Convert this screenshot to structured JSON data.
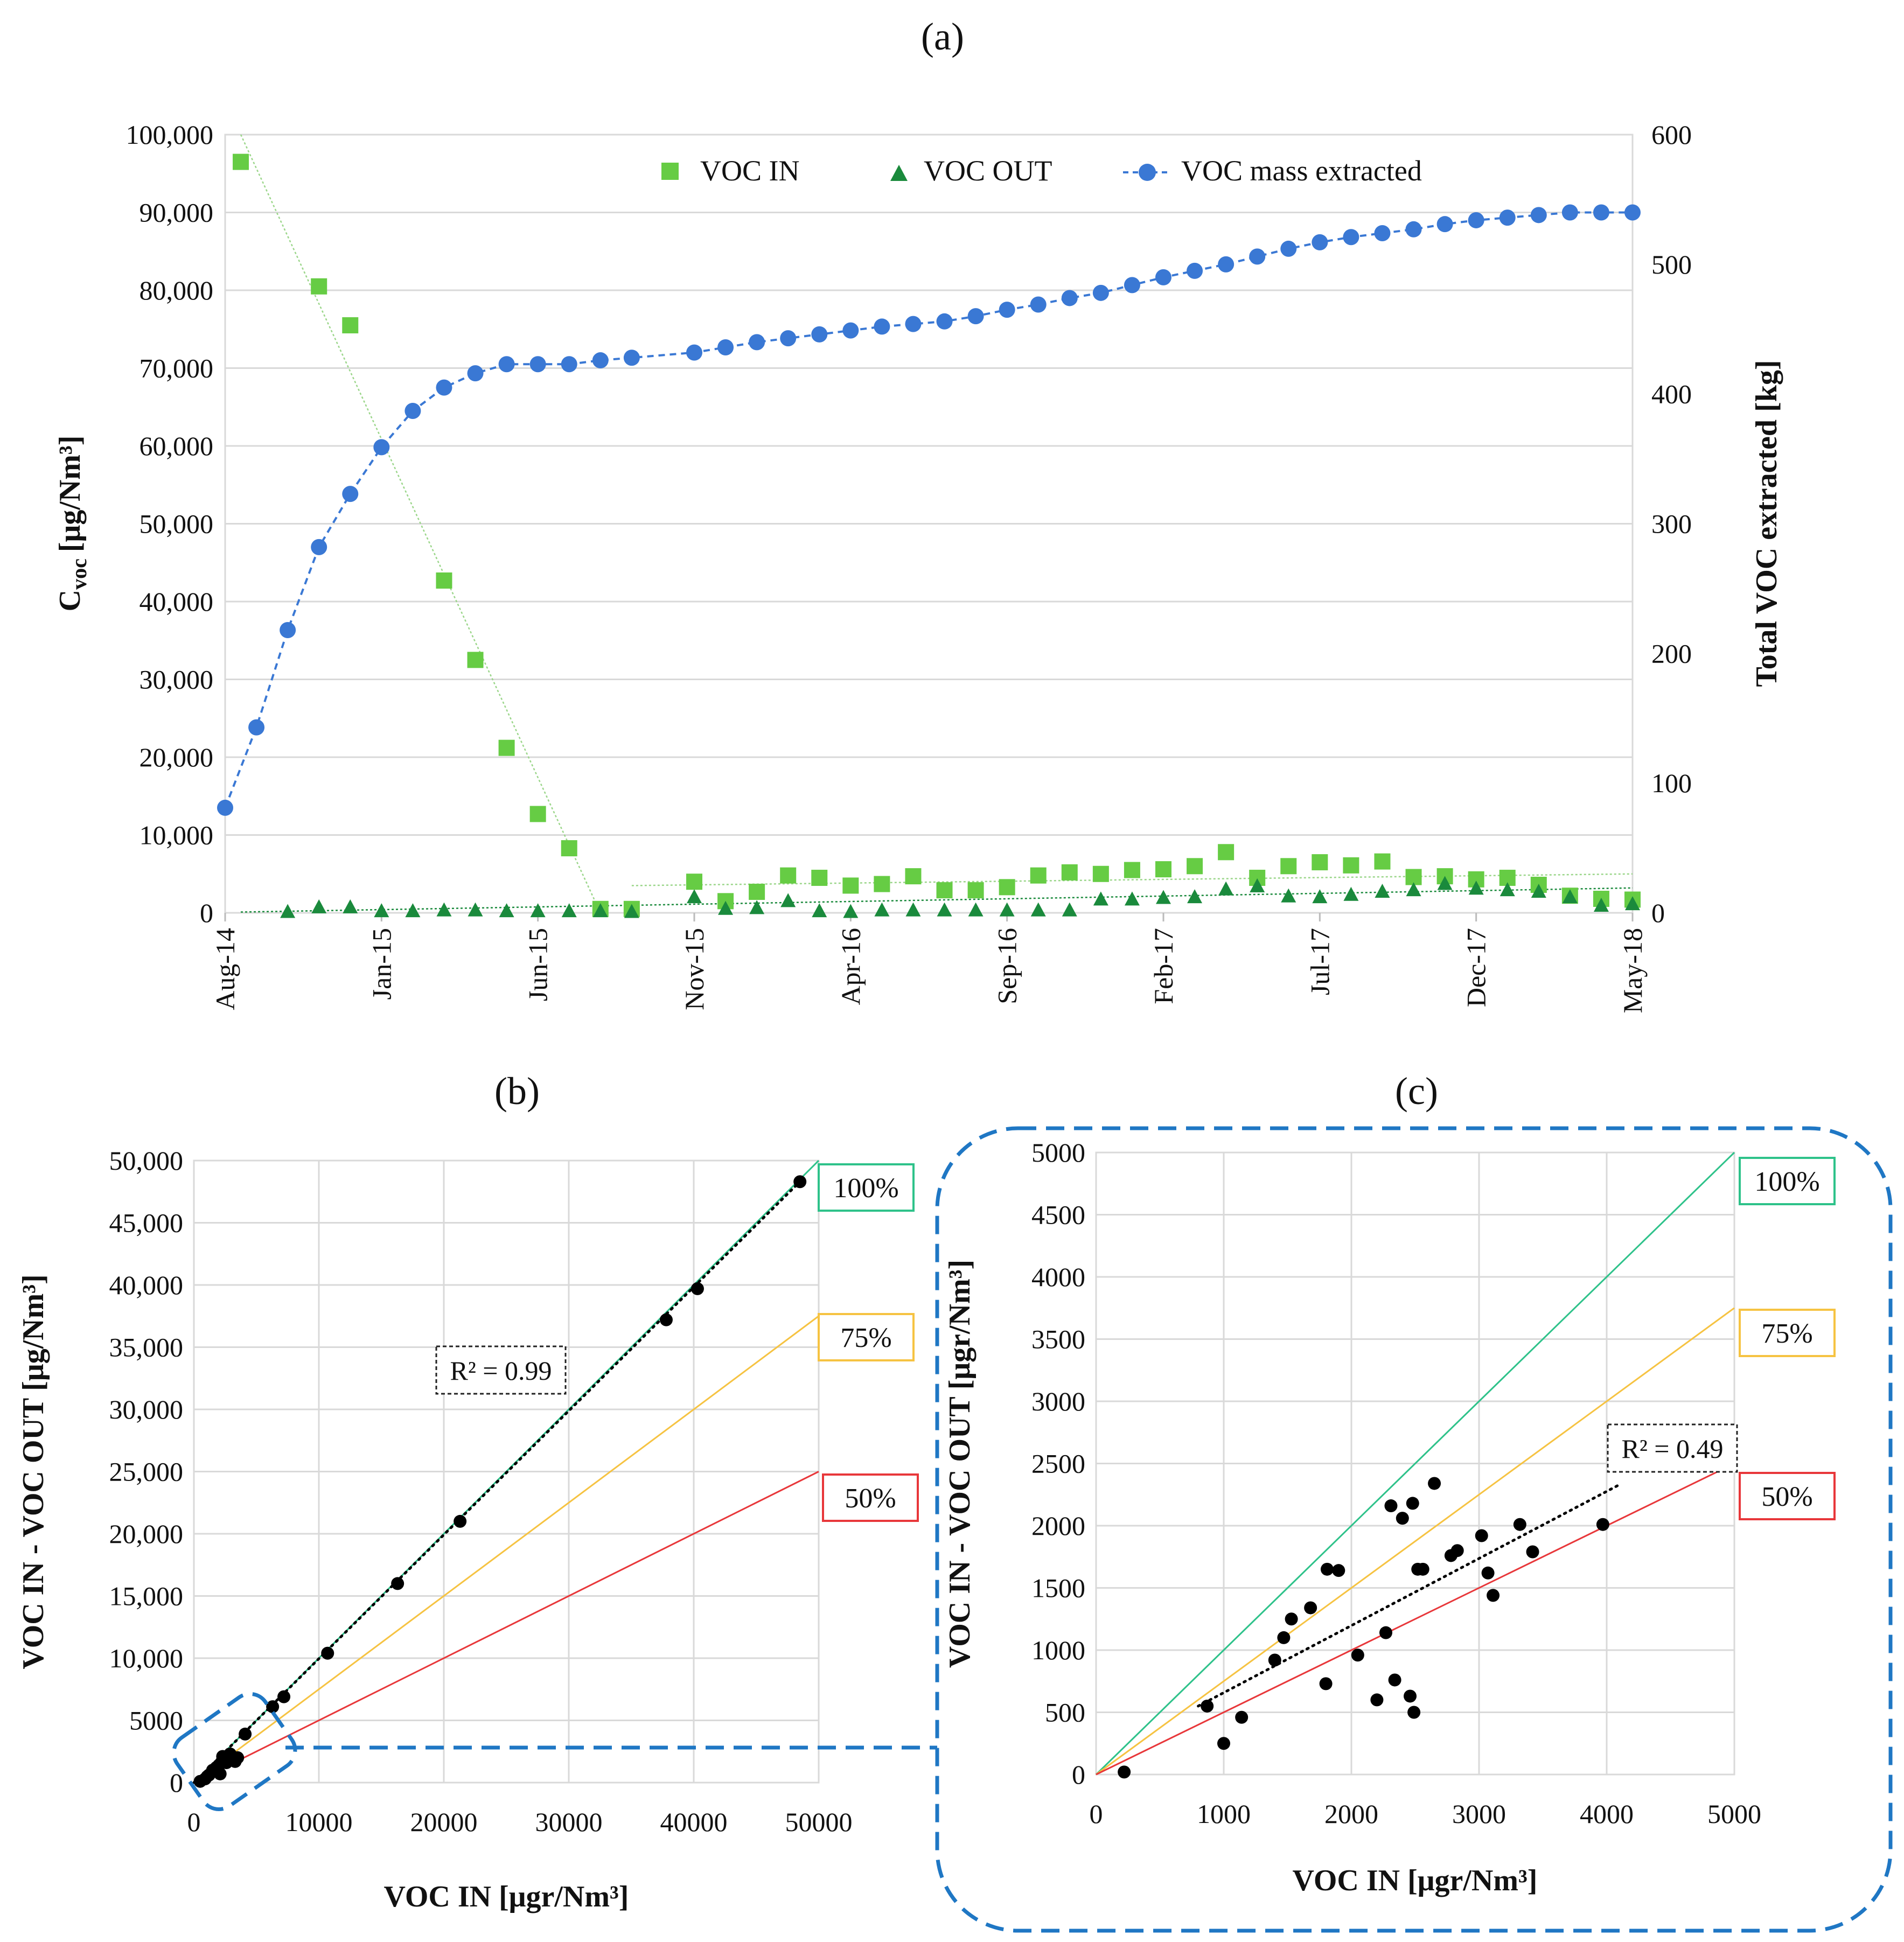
{
  "figure": {
    "panel_a_label": "(a)",
    "panel_b_label": "(b)",
    "panel_c_label": "(c)"
  },
  "chart_data": [
    {
      "panel": "(a)",
      "type": "scatter",
      "xlabel": "",
      "ylabel_left_main": "C",
      "ylabel_left_sub": "voc",
      "ylabel_left_unit": "[μg/Nm³]",
      "ylabel_right": "Total VOC extracted [kg]",
      "ylim_left": [
        0,
        100000
      ],
      "ylim_right": [
        0,
        600
      ],
      "yticks_left": [
        "0",
        "10,000",
        "20,000",
        "30,000",
        "40,000",
        "50,000",
        "60,000",
        "70,000",
        "80,000",
        "90,000",
        "100,000"
      ],
      "yticks_right": [
        "0",
        "100",
        "200",
        "300",
        "400",
        "500",
        "600"
      ],
      "xticks": [
        "Aug-14",
        "Jan-15",
        "Jun-15",
        "Nov-15",
        "Apr-16",
        "Sep-16",
        "Feb-17",
        "Jul-17",
        "Dec-17",
        "May-18"
      ],
      "x_months_range": [
        0,
        45
      ],
      "grid": true,
      "legend_position": "top",
      "series": [
        {
          "name": "VOC IN",
          "axis": "left",
          "marker": "square",
          "color": "#66cc44",
          "x": [
            0.5,
            3,
            4,
            7,
            8,
            9,
            10,
            11,
            12,
            13,
            15,
            16,
            17,
            18,
            19,
            20,
            21,
            22,
            23,
            24,
            25,
            26,
            27,
            28,
            29,
            30,
            31,
            32,
            33,
            34,
            35,
            36,
            37,
            38,
            39,
            40,
            41,
            42,
            43,
            44,
            45
          ],
          "values": [
            96500,
            80500,
            75500,
            42700,
            32500,
            21200,
            12700,
            8300,
            500,
            500,
            4000,
            1500,
            2700,
            4800,
            4500,
            3500,
            3700,
            4700,
            2900,
            2900,
            3300,
            4800,
            5200,
            5000,
            5500,
            5600,
            6000,
            7800,
            4500,
            6000,
            6500,
            6100,
            6600,
            4600,
            4700,
            4300,
            4500,
            3600,
            2200,
            1800,
            1700
          ]
        },
        {
          "name": "VOC OUT",
          "axis": "left",
          "marker": "triangle",
          "color": "#1a8a3c",
          "x": [
            2,
            3,
            4,
            5,
            6,
            7,
            8,
            9,
            10,
            11,
            12,
            13,
            15,
            16,
            17,
            18,
            19,
            20,
            21,
            22,
            23,
            24,
            25,
            26,
            27,
            28,
            29,
            30,
            31,
            32,
            33,
            34,
            35,
            36,
            37,
            38,
            39,
            40,
            41,
            42,
            43,
            44,
            45
          ],
          "values": [
            100,
            700,
            700,
            200,
            200,
            300,
            300,
            200,
            200,
            200,
            200,
            100,
            2000,
            500,
            600,
            1500,
            200,
            100,
            300,
            300,
            300,
            300,
            300,
            300,
            300,
            1700,
            1700,
            1900,
            2000,
            3000,
            3400,
            2100,
            2000,
            2300,
            2700,
            2900,
            3700,
            3100,
            2900,
            2700,
            2000,
            900,
            1100
          ]
        },
        {
          "name": "VOC mass extracted",
          "axis": "right",
          "marker": "circle",
          "line": "dashed",
          "color": "#3a78d4",
          "x": [
            0,
            1,
            2,
            3,
            4,
            5,
            6,
            7,
            8,
            9,
            10,
            11,
            12,
            13,
            15,
            16,
            17,
            18,
            19,
            20,
            21,
            22,
            23,
            24,
            25,
            26,
            27,
            28,
            29,
            30,
            31,
            32,
            33,
            34,
            35,
            36,
            37,
            38,
            39,
            40,
            41,
            42,
            43,
            44,
            45
          ],
          "values": [
            81,
            143,
            218,
            282,
            323,
            359,
            387,
            405,
            416,
            423,
            423,
            423,
            426,
            428,
            432,
            436,
            440,
            443,
            446,
            449,
            452,
            454,
            456,
            460,
            465,
            469,
            474,
            478,
            484,
            490,
            495,
            500,
            506,
            512,
            517,
            521,
            524,
            527,
            531,
            534,
            536,
            538,
            540,
            540,
            540
          ]
        }
      ],
      "trendlines": [
        {
          "series": "VOC IN",
          "color": "#9bd68a",
          "from": [
            0.5,
            100000
          ],
          "to": [
            12,
            0
          ]
        },
        {
          "series": "VOC IN",
          "color": "#9bd68a",
          "from": [
            13,
            3500
          ],
          "to": [
            45,
            5000
          ]
        },
        {
          "series": "VOC OUT",
          "color": "#1a8a3c",
          "from": [
            0.5,
            100
          ],
          "to": [
            45,
            3200
          ]
        }
      ]
    },
    {
      "panel": "(b)",
      "type": "scatter",
      "xlabel": "VOC IN [μgr/Nm³]",
      "ylabel": "VOC IN - VOC OUT [μg/Nm³]",
      "xlim": [
        0,
        50000
      ],
      "ylim": [
        0,
        50000
      ],
      "xticks": [
        "0",
        "10000",
        "20000",
        "30000",
        "40000",
        "50000"
      ],
      "yticks": [
        "0",
        "5000",
        "10,000",
        "15,000",
        "20,000",
        "25,000",
        "30,000",
        "35,000",
        "40,000",
        "45,000",
        "50,000"
      ],
      "grid": true,
      "r2_label": "R² = 0.99",
      "reference_lines": [
        {
          "label": "100%",
          "slope": 1.0,
          "color": "#2ec28a"
        },
        {
          "label": "75%",
          "slope": 0.75,
          "color": "#f6c342"
        },
        {
          "label": "50%",
          "slope": 0.5,
          "color": "#e8373a"
        }
      ],
      "points": {
        "x": [
          48500,
          40300,
          37800,
          21300,
          16300,
          10700,
          7200,
          6300,
          4100,
          3300,
          2900,
          2600,
          2300,
          2000,
          1800,
          1500,
          1200,
          900,
          500,
          2400,
          3500,
          2100
        ],
        "y": [
          48300,
          39700,
          37200,
          21000,
          16000,
          10400,
          6900,
          6100,
          3900,
          1700,
          2300,
          1600,
          2100,
          1400,
          900,
          1000,
          600,
          300,
          100,
          1800,
          2000,
          700
        ]
      }
    },
    {
      "panel": "(c)",
      "type": "scatter",
      "xlabel": "VOC IN [μgr/Nm³]",
      "ylabel": "VOC IN - VOC OUT [μgr/Nm³]",
      "xlim": [
        0,
        5000
      ],
      "ylim": [
        0,
        5000
      ],
      "xticks": [
        "0",
        "1000",
        "2000",
        "3000",
        "4000",
        "5000"
      ],
      "yticks": [
        "0",
        "500",
        "1000",
        "1500",
        "2000",
        "2500",
        "3000",
        "3500",
        "4000",
        "4500",
        "5000"
      ],
      "grid": true,
      "r2_label": "R² = 0.49",
      "reference_lines": [
        {
          "label": "100%",
          "slope": 1.0,
          "color": "#2ec28a"
        },
        {
          "label": "75%",
          "slope": 0.75,
          "color": "#f6c342"
        },
        {
          "label": "50%",
          "slope": 0.5,
          "color": "#e8373a"
        }
      ],
      "trendline": {
        "from": [
          800,
          550
        ],
        "to": [
          4100,
          2330
        ],
        "color": "#000000"
      },
      "points": {
        "x": [
          220,
          870,
          1000,
          1140,
          1400,
          1470,
          1530,
          1680,
          1800,
          1810,
          1900,
          2050,
          2200,
          2270,
          2310,
          2340,
          2400,
          2460,
          2480,
          2490,
          2520,
          2560,
          2650,
          2780,
          2830,
          3020,
          3070,
          3110,
          3320,
          3420,
          3970
        ],
        "y": [
          20,
          550,
          250,
          460,
          920,
          1100,
          1250,
          1340,
          730,
          1650,
          1640,
          960,
          600,
          1140,
          2160,
          760,
          2060,
          630,
          2180,
          500,
          1650,
          1650,
          2340,
          1760,
          1800,
          1920,
          1620,
          1440,
          2010,
          1790,
          2010
        ]
      }
    }
  ]
}
